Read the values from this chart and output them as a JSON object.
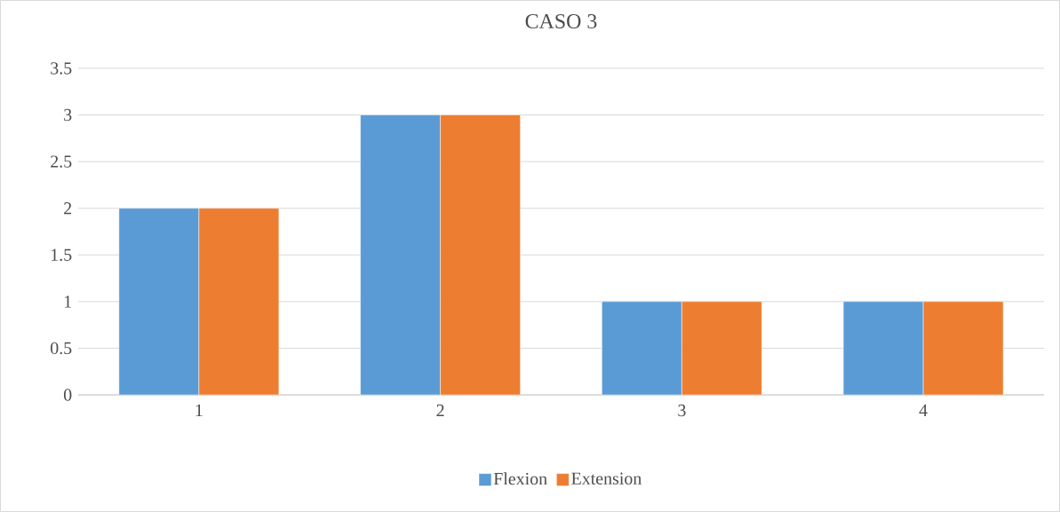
{
  "chart_data": {
    "type": "bar",
    "title": "CASO 3",
    "categories": [
      "1",
      "2",
      "3",
      "4"
    ],
    "series": [
      {
        "name": "Flexion",
        "color": "#5b9bd5",
        "values": [
          2,
          3,
          1,
          1
        ]
      },
      {
        "name": "Extension",
        "color": "#ed7d31",
        "values": [
          2,
          3,
          1,
          1
        ]
      }
    ],
    "ylim": [
      0,
      3.5
    ],
    "yticks": [
      0,
      0.5,
      1,
      1.5,
      2,
      2.5,
      3,
      3.5
    ],
    "grid": "y",
    "legend": "bottom"
  }
}
